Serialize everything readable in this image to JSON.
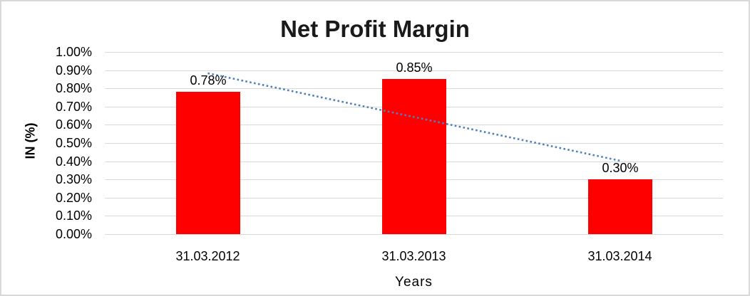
{
  "chart_data": {
    "type": "bar",
    "title": "Net Profit Margin",
    "xlabel": "Years",
    "ylabel": "IN (%)",
    "categories": [
      "31.03.2012",
      "31.03.2013",
      "31.03.2014"
    ],
    "values": [
      0.78,
      0.85,
      0.3
    ],
    "data_labels": [
      "0.78%",
      "0.85%",
      "0.30%"
    ],
    "ylim": [
      0,
      1.0
    ],
    "y_ticks_top_to_bottom": [
      "1.00%",
      "0.90%",
      "0.80%",
      "0.70%",
      "0.60%",
      "0.50%",
      "0.40%",
      "0.30%",
      "0.20%",
      "0.10%",
      "0.00%"
    ],
    "grid": true,
    "legend": "none",
    "bar_color": "#ff0000",
    "gridline_color": "#d9d9d9",
    "frame_color": "#d9d9d9",
    "text_color": "#000000",
    "trendline": {
      "type": "linear",
      "style": "dotted",
      "color": "#4e81bd",
      "start_value": 0.883,
      "end_value": 0.403
    }
  }
}
